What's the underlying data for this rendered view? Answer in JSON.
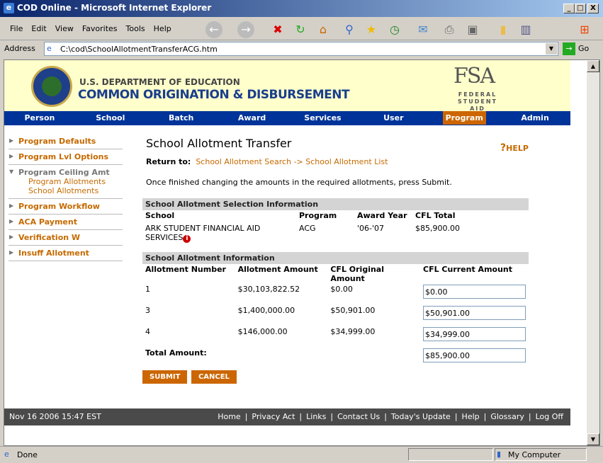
{
  "window": {
    "title": "COD Online - Microsoft Internet Explorer"
  },
  "menu": [
    "File",
    "Edit",
    "View",
    "Favorites",
    "Tools",
    "Help"
  ],
  "address": {
    "label": "Address",
    "url": "C:\\cod\\SchoolAllotmentTransferACG.htm",
    "go": "Go"
  },
  "banner": {
    "dept": "U.S. DEPARTMENT OF EDUCATION",
    "title": "COMMON ORIGINATION & DISBURSEMENT",
    "logo": "FSA",
    "logo_sub": "FEDERAL STUDENT AID"
  },
  "nav": [
    "Person",
    "School",
    "Batch",
    "Award",
    "Services",
    "User",
    "Program",
    "Admin"
  ],
  "nav_active": "Program",
  "sidebar": {
    "items": [
      "Program Defaults",
      "Program Lvl Options",
      "Program Ceiling Amt",
      "Program Workflow",
      "ACA Payment",
      "Verification W",
      "Insuff Allotment"
    ],
    "sub": [
      "Program Allotments",
      "School Allotments"
    ]
  },
  "main": {
    "title": "School Allotment Transfer",
    "help": "HELP",
    "return_label": "Return to:",
    "return_link1": "School Allotment Search",
    "arrow": "->",
    "return_link2": "School Allotment List",
    "instruction": "Once finished changing the amounts in the required allotments, press Submit.",
    "sel": {
      "header": "School Allotment Selection Information",
      "cols": [
        "School",
        "Program",
        "Award Year",
        "CFL Total"
      ],
      "row": {
        "school": "ARK STUDENT FINANCIAL AID SERVICES",
        "program": "ACG",
        "year": "'06-'07",
        "total": "$85,900.00"
      }
    },
    "alloc": {
      "header": "School Allotment Information",
      "cols": [
        "Allotment Number",
        "Allotment Amount",
        "CFL Original Amount",
        "CFL Current Amount"
      ],
      "rows": [
        {
          "num": "1",
          "amount": "$30,103,822.52",
          "orig": "$0.00",
          "current": "$0.00"
        },
        {
          "num": "3",
          "amount": "$1,400,000.00",
          "orig": "$50,901.00",
          "current": "$50,901.00"
        },
        {
          "num": "4",
          "amount": "$146,000.00",
          "orig": "$34,999.00",
          "current": "$34,999.00"
        }
      ],
      "total_label": "Total Amount:",
      "total": "$85,900.00"
    },
    "submit": "SUBMIT",
    "cancel": "CANCEL"
  },
  "footer": {
    "date": "Nov 16 2006 15:47 EST",
    "links": [
      "Home",
      "Privacy Act",
      "Links",
      "Contact Us",
      "Today's Update",
      "Help",
      "Glossary",
      "Log Off"
    ]
  },
  "status": {
    "text": "Done",
    "zone": "My Computer"
  }
}
